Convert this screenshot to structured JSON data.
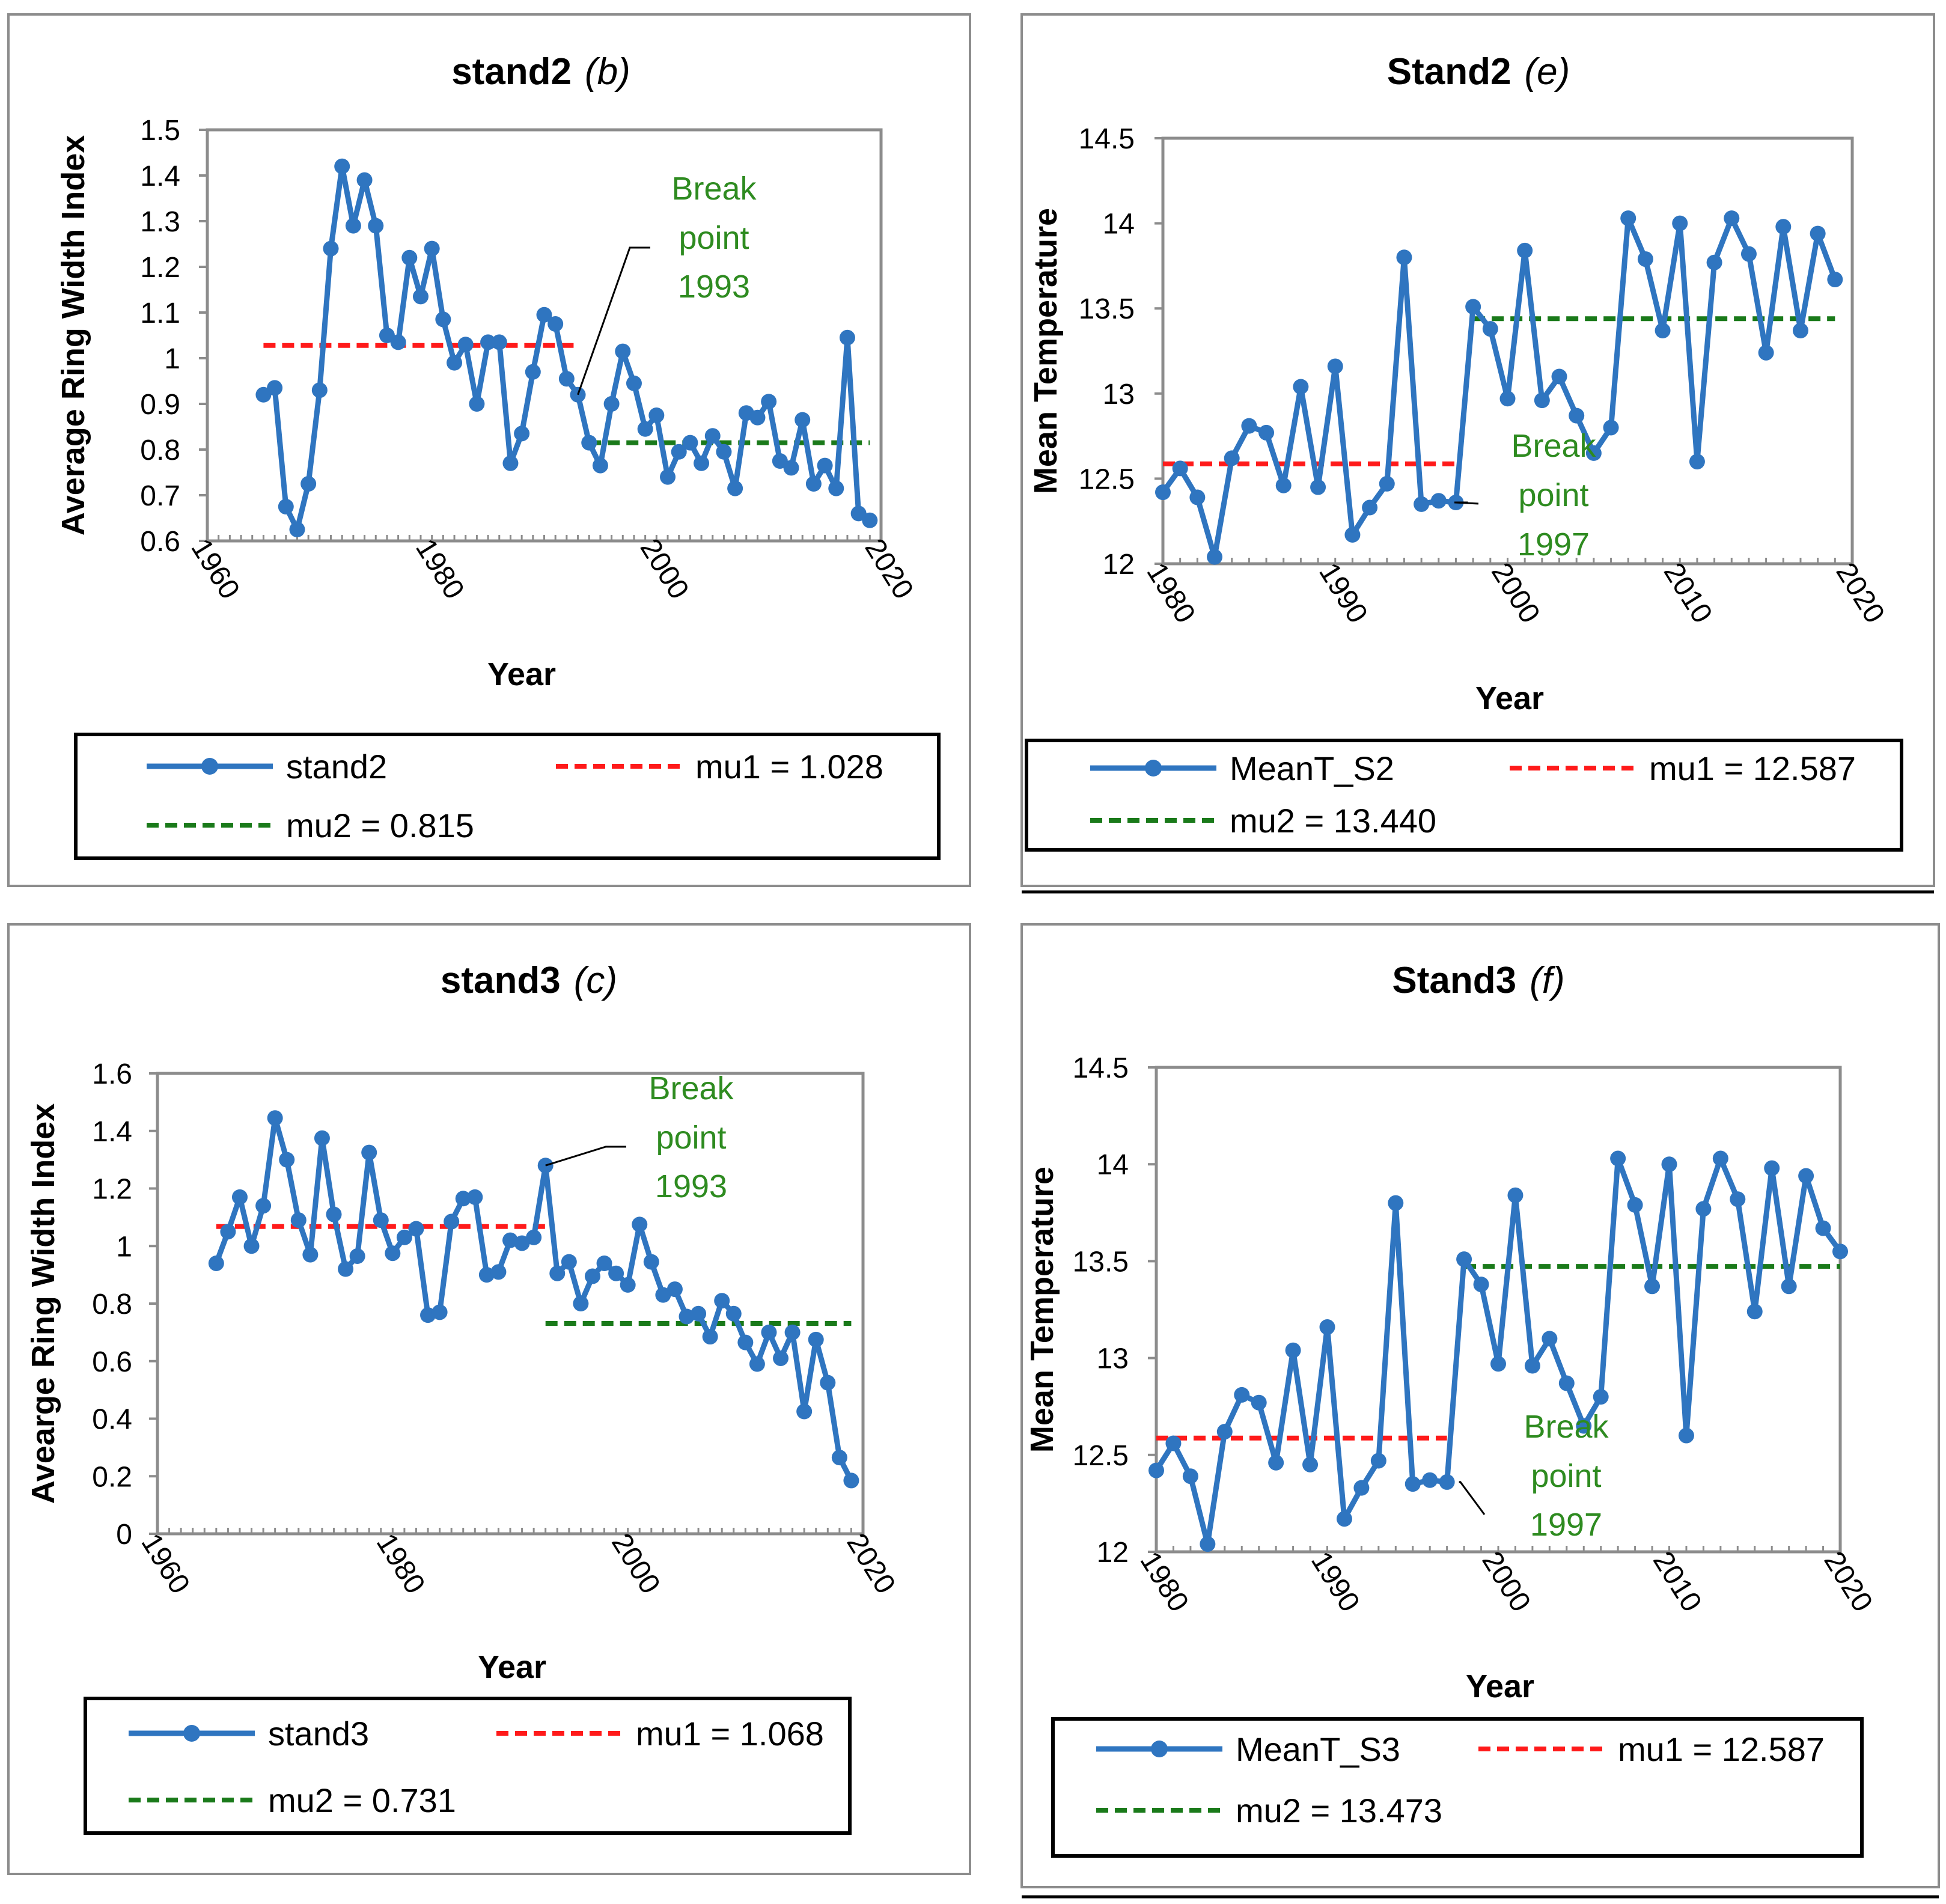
{
  "chart_data": [
    {
      "id": "b",
      "type": "line",
      "title": "stand2",
      "title_tag": "(b)",
      "xlabel": "Year",
      "ylabel": "Average Ring Width Index",
      "xlim": [
        1960,
        2020
      ],
      "xticks": [
        1960,
        1980,
        2000,
        2020
      ],
      "ylim": [
        0.6,
        1.5
      ],
      "yticks": [
        "0.6",
        "0.7",
        "0.8",
        "0.9",
        "1",
        "1.1",
        "1.2",
        "1.3",
        "1.4",
        "1.5"
      ],
      "series": [
        {
          "name": "stand2",
          "x": [
            1965,
            1966,
            1967,
            1968,
            1969,
            1970,
            1971,
            1972,
            1973,
            1974,
            1975,
            1976,
            1977,
            1978,
            1979,
            1980,
            1981,
            1982,
            1983,
            1984,
            1985,
            1986,
            1987,
            1988,
            1989,
            1990,
            1991,
            1992,
            1993,
            1994,
            1995,
            1996,
            1997,
            1998,
            1999,
            2000,
            2001,
            2002,
            2003,
            2004,
            2005,
            2006,
            2007,
            2008,
            2009,
            2010,
            2011,
            2012,
            2013,
            2014,
            2015,
            2016,
            2017,
            2018,
            2019
          ],
          "values": [
            0.92,
            0.935,
            0.675,
            0.625,
            0.725,
            0.93,
            1.24,
            1.42,
            1.29,
            1.39,
            1.29,
            1.05,
            1.035,
            1.22,
            1.135,
            1.24,
            1.085,
            0.99,
            1.03,
            0.9,
            1.035,
            1.035,
            0.77,
            0.835,
            0.97,
            1.095,
            1.075,
            0.955,
            0.92,
            0.815,
            0.765,
            0.9,
            1.015,
            0.945,
            0.845,
            0.875,
            0.74,
            0.795,
            0.815,
            0.77,
            0.83,
            0.795,
            0.715,
            0.88,
            0.87,
            0.905,
            0.775,
            0.76,
            0.865,
            0.725,
            0.765,
            0.715,
            1.045,
            0.66,
            0.645
          ]
        }
      ],
      "segments": [
        {
          "name": "mu1 = 1.028",
          "value": 1.028,
          "from": 1965,
          "to": 1993,
          "color": "#ff1a1a"
        },
        {
          "name": "mu2 = 0.815",
          "value": 0.815,
          "from": 1994,
          "to": 2019,
          "color": "#1a7a1a"
        }
      ],
      "annotation": {
        "lines": [
          "Break",
          "point",
          "1993"
        ],
        "x": 1993,
        "y": 0.92
      }
    },
    {
      "id": "e",
      "type": "line",
      "title": "Stand2",
      "title_tag": "(e)",
      "xlabel": "Year",
      "ylabel": "Mean Temperature",
      "xlim": [
        1980,
        2020
      ],
      "xticks": [
        1980,
        1990,
        2000,
        2010,
        2020
      ],
      "ylim": [
        12,
        14.5
      ],
      "yticks": [
        "12",
        "12.5",
        "13",
        "13.5",
        "14",
        "14.5"
      ],
      "series": [
        {
          "name": "MeanT_S2",
          "x": [
            1980,
            1981,
            1982,
            1983,
            1984,
            1985,
            1986,
            1987,
            1988,
            1989,
            1990,
            1991,
            1992,
            1993,
            1994,
            1995,
            1996,
            1997,
            1998,
            1999,
            2000,
            2001,
            2002,
            2003,
            2004,
            2005,
            2006,
            2007,
            2008,
            2009,
            2010,
            2011,
            2012,
            2013,
            2014,
            2015,
            2016,
            2017,
            2018,
            2019
          ],
          "values": [
            12.42,
            12.56,
            12.39,
            12.04,
            12.62,
            12.81,
            12.77,
            12.46,
            13.04,
            12.45,
            13.16,
            12.17,
            12.33,
            12.47,
            13.8,
            12.35,
            12.37,
            12.36,
            13.51,
            13.38,
            12.97,
            13.84,
            12.96,
            13.1,
            12.87,
            12.65,
            12.8,
            14.03,
            13.79,
            13.37,
            14.0,
            12.6,
            13.77,
            14.03,
            13.82,
            13.24,
            13.98,
            13.37,
            13.94,
            13.67
          ]
        }
      ],
      "segments": [
        {
          "name": "mu1 = 12.587",
          "value": 12.587,
          "from": 1980,
          "to": 1997,
          "color": "#ff1a1a"
        },
        {
          "name": "mu2 = 13.440",
          "value": 13.44,
          "from": 1998,
          "to": 2019,
          "color": "#1a7a1a"
        }
      ],
      "annotation": {
        "lines": [
          "Break",
          "point",
          "1997"
        ],
        "x": 1997,
        "y": 12.36
      }
    },
    {
      "id": "c",
      "type": "line",
      "title": "stand3",
      "title_tag": "(c)",
      "xlabel": "Year",
      "ylabel": "Avearge Ring Width Index",
      "xlim": [
        1960,
        2020
      ],
      "xticks": [
        1960,
        1980,
        2000,
        2020
      ],
      "ylim": [
        0,
        1.6
      ],
      "yticks": [
        "0",
        "0.2",
        "0.4",
        "0.6",
        "0.8",
        "1",
        "1.2",
        "1.4",
        "1.6"
      ],
      "series": [
        {
          "name": "stand3",
          "x": [
            1965,
            1966,
            1967,
            1968,
            1969,
            1970,
            1971,
            1972,
            1973,
            1974,
            1975,
            1976,
            1977,
            1978,
            1979,
            1980,
            1981,
            1982,
            1983,
            1984,
            1985,
            1986,
            1987,
            1988,
            1989,
            1990,
            1991,
            1992,
            1993,
            1994,
            1995,
            1996,
            1997,
            1998,
            1999,
            2000,
            2001,
            2002,
            2003,
            2004,
            2005,
            2006,
            2007,
            2008,
            2009,
            2010,
            2011,
            2012,
            2013,
            2014,
            2015,
            2016,
            2017,
            2018,
            2019
          ],
          "values": [
            0.94,
            1.05,
            1.17,
            1.0,
            1.14,
            1.445,
            1.3,
            1.09,
            0.97,
            1.375,
            1.11,
            0.92,
            0.965,
            1.325,
            1.09,
            0.975,
            1.03,
            1.06,
            0.76,
            0.77,
            1.085,
            1.165,
            1.17,
            0.9,
            0.91,
            1.02,
            1.01,
            1.03,
            1.28,
            0.905,
            0.945,
            0.8,
            0.895,
            0.94,
            0.905,
            0.865,
            1.075,
            0.945,
            0.83,
            0.85,
            0.755,
            0.765,
            0.685,
            0.81,
            0.765,
            0.665,
            0.59,
            0.7,
            0.61,
            0.7,
            0.425,
            0.675,
            0.525,
            0.265,
            0.185
          ]
        }
      ],
      "segments": [
        {
          "name": "mu1 = 1.068",
          "value": 1.068,
          "from": 1965,
          "to": 1993,
          "color": "#ff1a1a"
        },
        {
          "name": "mu2 = 0.731",
          "value": 0.731,
          "from": 1993,
          "to": 2019,
          "color": "#1a7a1a"
        }
      ],
      "annotation": {
        "lines": [
          "Break",
          "point",
          "1993"
        ],
        "x": 1993,
        "y": 1.28
      }
    },
    {
      "id": "f",
      "type": "line",
      "title": "Stand3",
      "title_tag": "(f)",
      "xlabel": "Year",
      "ylabel": "Mean Temperature",
      "xlim": [
        1980,
        2020
      ],
      "xticks": [
        1980,
        1990,
        2000,
        2010,
        2020
      ],
      "ylim": [
        12,
        14.5
      ],
      "yticks": [
        "12",
        "12.5",
        "13",
        "13.5",
        "14",
        "14.5"
      ],
      "series": [
        {
          "name": "MeanT_S3",
          "x": [
            1980,
            1981,
            1982,
            1983,
            1984,
            1985,
            1986,
            1987,
            1988,
            1989,
            1990,
            1991,
            1992,
            1993,
            1994,
            1995,
            1996,
            1997,
            1998,
            1999,
            2000,
            2001,
            2002,
            2003,
            2004,
            2005,
            2006,
            2007,
            2008,
            2009,
            2010,
            2011,
            2012,
            2013,
            2014,
            2015,
            2016,
            2017,
            2018,
            2019,
            2020
          ],
          "values": [
            12.42,
            12.56,
            12.39,
            12.04,
            12.62,
            12.81,
            12.77,
            12.46,
            13.04,
            12.45,
            13.16,
            12.17,
            12.33,
            12.47,
            13.8,
            12.35,
            12.37,
            12.36,
            13.51,
            13.38,
            12.97,
            13.84,
            12.96,
            13.1,
            12.87,
            12.65,
            12.8,
            14.03,
            13.79,
            13.37,
            14.0,
            12.6,
            13.77,
            14.03,
            13.82,
            13.24,
            13.98,
            13.37,
            13.94,
            13.67,
            13.55
          ]
        }
      ],
      "segments": [
        {
          "name": "mu1 = 12.587",
          "value": 12.587,
          "from": 1980,
          "to": 1997,
          "color": "#ff1a1a"
        },
        {
          "name": "mu2 = 13.473",
          "value": 13.473,
          "from": 1998,
          "to": 2020,
          "color": "#1a7a1a"
        }
      ],
      "annotation": {
        "lines": [
          "Break",
          "point",
          "1997"
        ],
        "x": 1997,
        "y": 12.36
      }
    }
  ],
  "colors": {
    "series": "#2f75c0",
    "mu1": "#ff1a1a",
    "mu2": "#1a7a1a",
    "annotation": "#2e8b20"
  }
}
